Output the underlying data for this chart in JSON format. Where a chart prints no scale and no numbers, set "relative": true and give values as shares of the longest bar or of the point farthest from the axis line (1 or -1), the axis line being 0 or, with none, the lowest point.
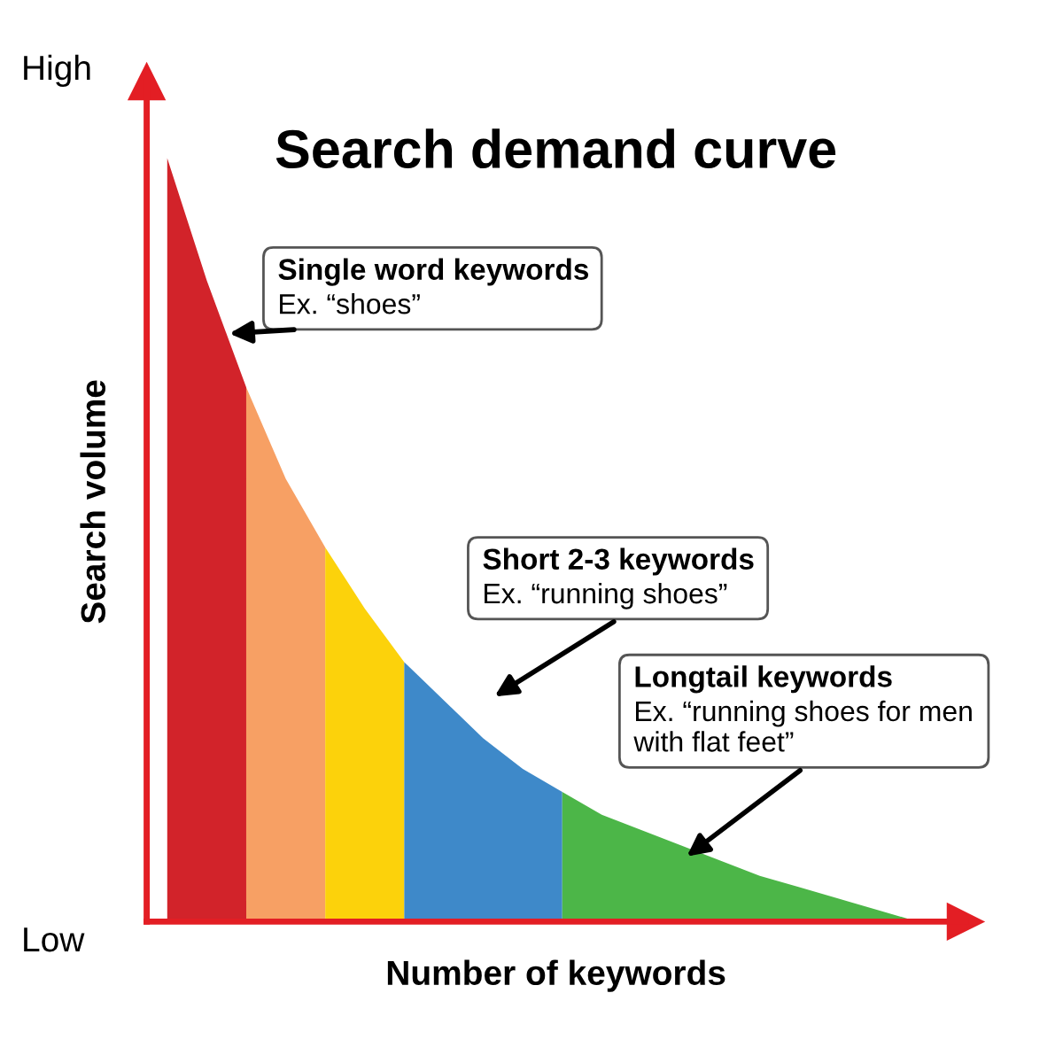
{
  "chart_data": {
    "type": "area",
    "title": "Search demand curve",
    "xlabel": "Number of keywords",
    "ylabel": "Search volume",
    "relative": true,
    "legend": false,
    "grid": false,
    "annotations": [
      "High",
      "Low",
      "Single word keywords\nEx. “shoes”",
      "Short 2-3 keywords\nEx. “running shoes”",
      "Longtail keywords\nEx. “running shoes for men\nwith flat feet”"
    ],
    "categories": [
      null,
      null,
      null,
      null,
      null,
      null,
      null,
      null,
      null,
      null,
      null,
      null,
      null,
      null,
      null,
      null,
      null,
      null,
      null,
      null
    ],
    "series": [
      {
        "color": "#d2232a",
        "values": [
          1.0,
          0.84,
          0.7,
          null,
          null,
          null,
          null,
          null,
          null,
          null,
          null,
          null,
          null,
          null,
          null,
          null,
          null,
          null,
          null,
          null
        ]
      },
      {
        "color": "#f7a064",
        "values": [
          null,
          null,
          0.7,
          0.58,
          0.49,
          null,
          null,
          null,
          null,
          null,
          null,
          null,
          null,
          null,
          null,
          null,
          null,
          null,
          null,
          null
        ]
      },
      {
        "color": "#fcd20b",
        "values": [
          null,
          null,
          null,
          null,
          0.49,
          0.41,
          0.34,
          null,
          null,
          null,
          null,
          null,
          null,
          null,
          null,
          null,
          null,
          null,
          null,
          null
        ]
      },
      {
        "color": "#3e89c9",
        "values": [
          null,
          null,
          null,
          null,
          null,
          null,
          0.34,
          0.29,
          0.24,
          0.2,
          0.17,
          null,
          null,
          null,
          null,
          null,
          null,
          null,
          null,
          null
        ]
      },
      {
        "color": "#4cb648",
        "values": [
          null,
          null,
          null,
          null,
          null,
          null,
          null,
          null,
          null,
          null,
          0.17,
          0.14,
          0.12,
          0.1,
          0.08,
          0.06,
          0.045,
          0.03,
          0.015,
          0.0
        ]
      }
    ]
  }
}
